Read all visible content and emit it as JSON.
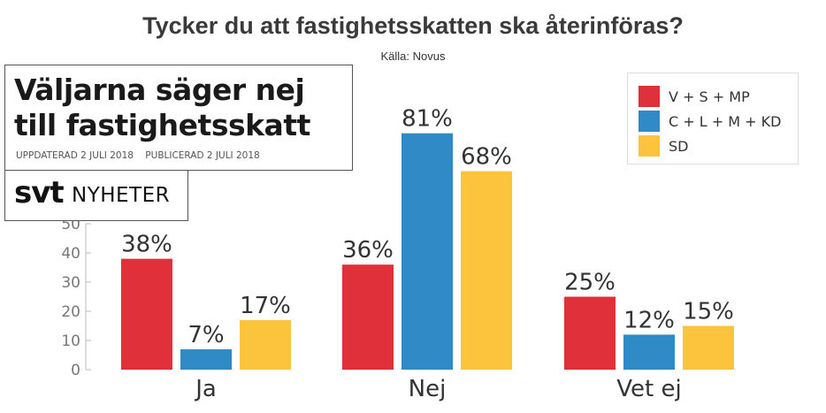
{
  "chart_data": {
    "type": "bar",
    "title": "Tycker du att fastighetsskatten ska återinföras?",
    "source": "Källa: Novus",
    "categories": [
      "Ja",
      "Nej",
      "Vet ej"
    ],
    "series": [
      {
        "name": "V + S + MP",
        "color": "#e0303a",
        "values": [
          38,
          36,
          25
        ]
      },
      {
        "name": "C + L + M + KD",
        "color": "#2f8ac6",
        "values": [
          7,
          81,
          12
        ]
      },
      {
        "name": "SD",
        "color": "#fcc43c",
        "values": [
          17,
          68,
          15
        ]
      }
    ],
    "value_suffix": "%",
    "y_ticks": [
      0,
      10,
      20,
      30,
      40,
      50
    ],
    "ylim": [
      0,
      90
    ],
    "grid": false,
    "legend_position": "top-right"
  },
  "overlay": {
    "headline": "Väljarna säger nej till fastighetsskatt",
    "updated": "UPPDATERAD 2 JULI 2018",
    "published": "PUBLICERAD 2 JULI 2018",
    "logo_brand": "svt",
    "logo_section": "NYHETER"
  }
}
